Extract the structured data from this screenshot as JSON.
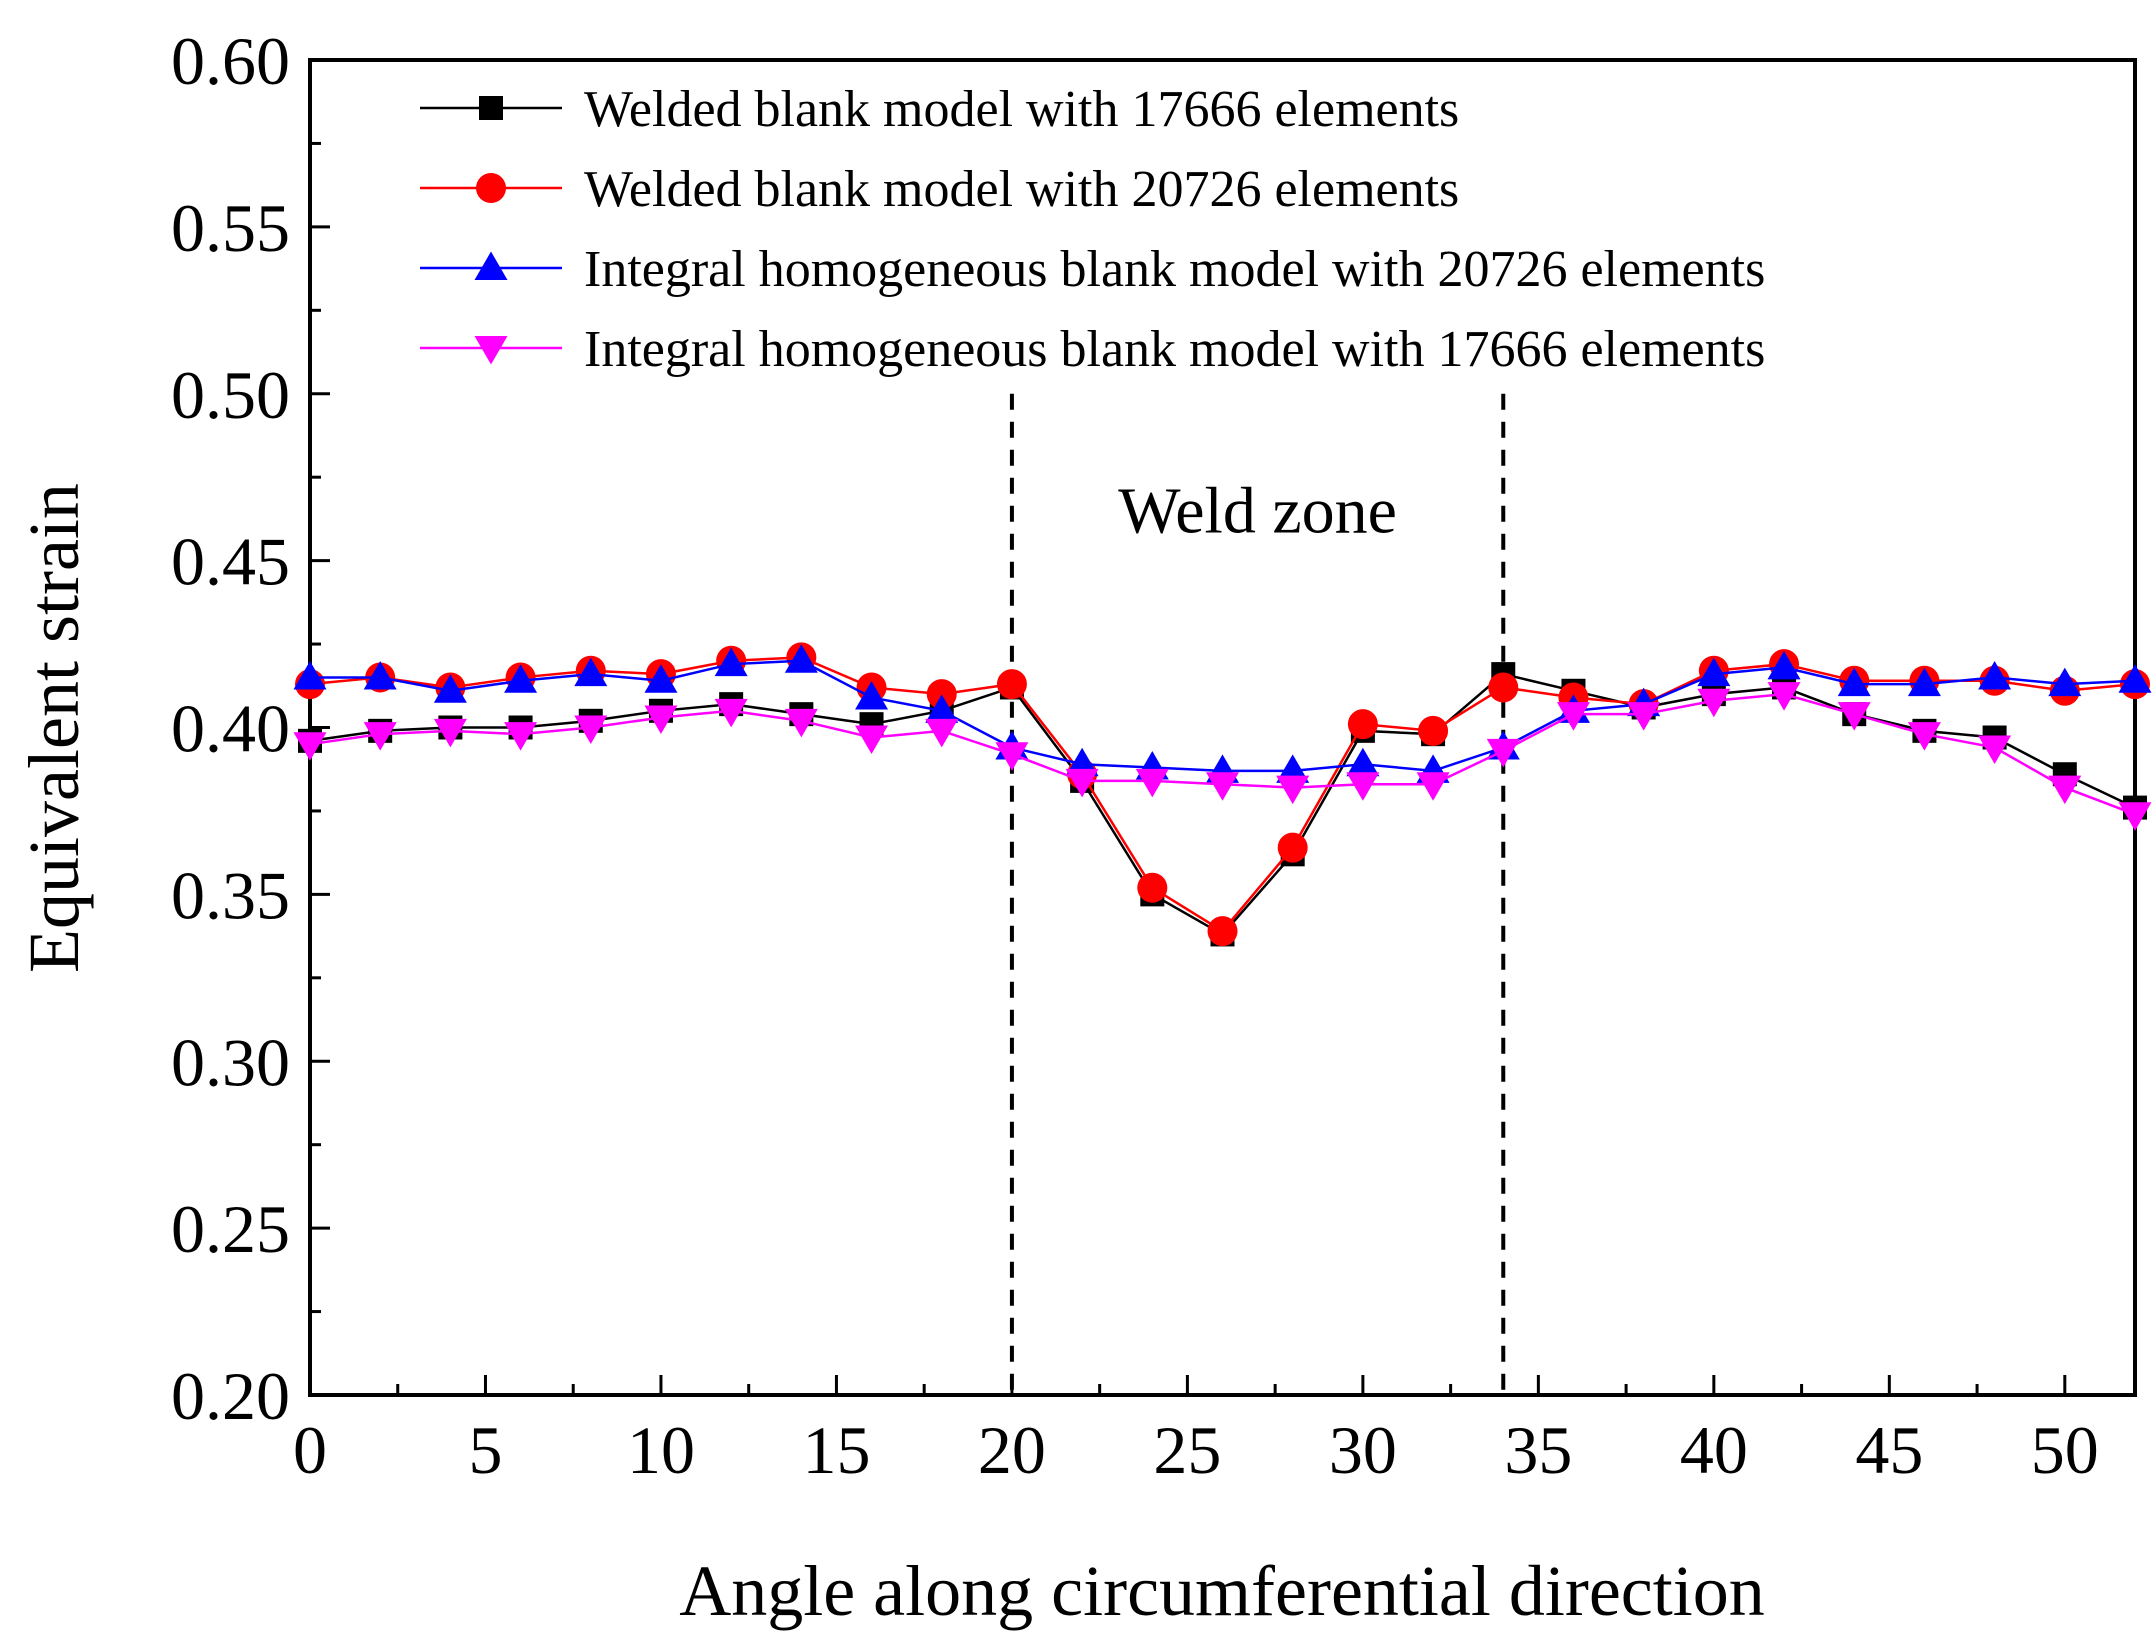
{
  "chart_data": {
    "type": "line",
    "title": "",
    "xlabel": "Angle along circumferential direction",
    "ylabel": "Equivalent strain",
    "xlim": [
      0,
      52
    ],
    "ylim": [
      0.2,
      0.6
    ],
    "xticks": [
      0,
      5,
      10,
      15,
      20,
      25,
      30,
      35,
      40,
      45,
      50
    ],
    "yticks": [
      0.2,
      0.25,
      0.3,
      0.35,
      0.4,
      0.45,
      0.5,
      0.55,
      0.6
    ],
    "xtick_labels": [
      "0",
      "5",
      "10",
      "15",
      "20",
      "25",
      "30",
      "35",
      "40",
      "45",
      "50"
    ],
    "ytick_labels": [
      "0.20",
      "0.25",
      "0.30",
      "0.35",
      "0.40",
      "0.45",
      "0.50",
      "0.55",
      "0.60"
    ],
    "legend_position": "top",
    "x": [
      0,
      2,
      4,
      6,
      8,
      10,
      12,
      14,
      16,
      18,
      20,
      22,
      24,
      26,
      28,
      30,
      32,
      34,
      36,
      38,
      40,
      42,
      44,
      46,
      48,
      50,
      52
    ],
    "series": [
      {
        "name": "Welded blank model with 17666 elements",
        "color": "#000000",
        "marker": "square",
        "values": [
          0.396,
          0.399,
          0.4,
          0.4,
          0.402,
          0.405,
          0.407,
          0.404,
          0.401,
          0.405,
          0.412,
          0.384,
          0.35,
          0.338,
          0.362,
          0.399,
          0.398,
          0.416,
          0.411,
          0.406,
          0.41,
          0.412,
          0.404,
          0.399,
          0.397,
          0.386,
          0.376
        ]
      },
      {
        "name": "Welded blank model with 20726 elements",
        "color": "#ff0000",
        "marker": "circle",
        "values": [
          0.413,
          0.415,
          0.412,
          0.415,
          0.417,
          0.416,
          0.42,
          0.421,
          0.412,
          0.41,
          0.413,
          0.386,
          0.352,
          0.339,
          0.364,
          0.401,
          0.399,
          0.412,
          0.409,
          0.407,
          0.417,
          0.419,
          0.414,
          0.414,
          0.414,
          0.411,
          0.413
        ]
      },
      {
        "name": "Integral homogeneous blank model with 20726 elements",
        "color": "#0000ff",
        "marker": "triangle-up",
        "values": [
          0.415,
          0.415,
          0.411,
          0.414,
          0.416,
          0.414,
          0.419,
          0.42,
          0.409,
          0.405,
          0.394,
          0.389,
          0.388,
          0.387,
          0.387,
          0.389,
          0.387,
          0.394,
          0.405,
          0.407,
          0.416,
          0.418,
          0.413,
          0.413,
          0.415,
          0.413,
          0.414
        ]
      },
      {
        "name": "Integral homogeneous blank model with 17666 elements",
        "color": "#ff00ff",
        "marker": "triangle-down",
        "values": [
          0.395,
          0.398,
          0.399,
          0.398,
          0.4,
          0.403,
          0.405,
          0.402,
          0.397,
          0.399,
          0.392,
          0.384,
          0.384,
          0.383,
          0.382,
          0.383,
          0.383,
          0.393,
          0.404,
          0.404,
          0.408,
          0.41,
          0.404,
          0.398,
          0.394,
          0.382,
          0.374
        ]
      }
    ],
    "annotations": [
      {
        "text": "Weld zone",
        "x": 27,
        "y": 0.465
      }
    ],
    "reference_lines": [
      {
        "type": "vertical",
        "x": 20,
        "style": "dashed",
        "y_top": 0.5
      },
      {
        "type": "vertical",
        "x": 34,
        "style": "dashed",
        "y_top": 0.5
      }
    ]
  }
}
